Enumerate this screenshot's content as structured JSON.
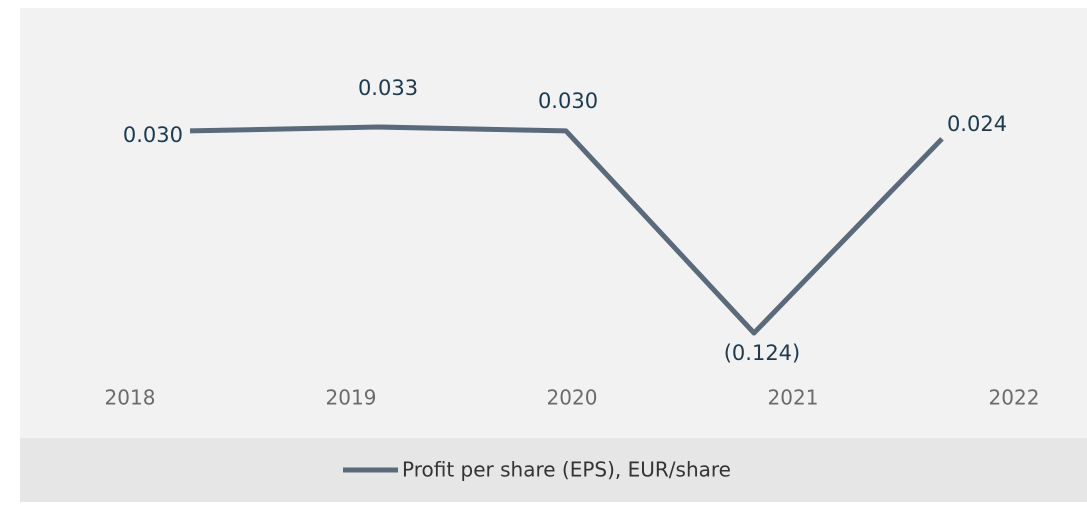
{
  "chart_data": {
    "type": "line",
    "categories": [
      "2018",
      "2019",
      "2020",
      "2021",
      "2022"
    ],
    "series": [
      {
        "name": "Profit per share (EPS), EUR/share",
        "color": "#5b6a7a",
        "values": [
          0.03,
          0.033,
          0.03,
          -0.124,
          0.024
        ],
        "value_labels": [
          "0.030",
          "0.033",
          "0.030",
          "(0.124)",
          "0.024"
        ]
      }
    ],
    "legend": "bottom"
  }
}
